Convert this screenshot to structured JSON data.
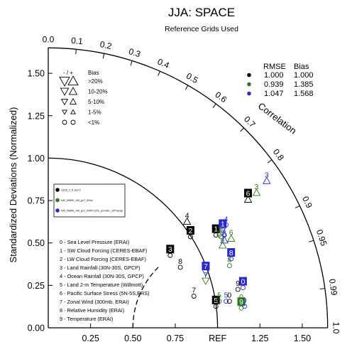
{
  "title": "JJA: SPACE",
  "subtitle": "Reference Grids Used",
  "colors": {
    "black": "#000000",
    "green": "#2a7a1a",
    "blue": "#2a2acc"
  },
  "chart_data": {
    "type": "scatter",
    "ylabel": "Standardized Deviations (Normalized)",
    "arc_label": "Correlation",
    "ref_label": "REF",
    "max_sd": 1.65,
    "x_ticks": [
      {
        "v": 0.25,
        "t": "0.25"
      },
      {
        "v": 0.5,
        "t": "0.50"
      },
      {
        "v": 0.75,
        "t": "0.75"
      },
      {
        "v": 1.25,
        "t": "1.25"
      },
      {
        "v": 1.5,
        "t": "1.50"
      }
    ],
    "y_ticks": [
      {
        "v": 0,
        "t": "0.00"
      },
      {
        "v": 0.25,
        "t": "0.25"
      },
      {
        "v": 0.5,
        "t": "0.50"
      },
      {
        "v": 0.75,
        "t": "0.75"
      },
      {
        "v": 1.0,
        "t": "1.00"
      },
      {
        "v": 1.25,
        "t": "1.25"
      },
      {
        "v": 1.5,
        "t": "1.50"
      }
    ],
    "corr_ticks": [
      {
        "v": 0,
        "t": "0.0"
      },
      {
        "v": 0.1,
        "t": "0.1"
      },
      {
        "v": 0.2,
        "t": "0.2"
      },
      {
        "v": 0.3,
        "t": "0.3"
      },
      {
        "v": 0.4,
        "t": "0.4"
      },
      {
        "v": 0.5,
        "t": "0.5"
      },
      {
        "v": 0.6,
        "t": "0.6"
      },
      {
        "v": 0.7,
        "t": "0.7"
      },
      {
        "v": 0.8,
        "t": "0.8"
      },
      {
        "v": 0.9,
        "t": "0.9"
      },
      {
        "v": 0.95,
        "t": "0.95"
      },
      {
        "v": 0.99,
        "t": "0.99"
      },
      {
        "v": 1.0,
        "t": "1.0"
      }
    ],
    "series": [
      {
        "color_key": "black",
        "rmse": "1.000",
        "bias": "1.000"
      },
      {
        "color_key": "green",
        "rmse": "0.939",
        "bias": "1.385"
      },
      {
        "color_key": "blue",
        "rmse": "1.047",
        "bias": "1.568"
      }
    ],
    "stats_header": {
      "rmse": "RMSE",
      "bias": "Bias"
    },
    "bias_legend": {
      "header": {
        "sign": "- / +",
        "bias": "Bias"
      },
      "rows": [
        {
          "label": ">20%",
          "size": 7
        },
        {
          "label": "10-20%",
          "size": 5.5
        },
        {
          "label": "5-10%",
          "size": 4.3
        },
        {
          "label": "1-5%",
          "size": 3.2
        },
        {
          "label": "<1%",
          "size": 3
        }
      ]
    },
    "case_legend": [
      {
        "label": "cam5_0_f1.9x2.5",
        "color_key": "black"
      },
      {
        "label": "b40_f09f09_140_g17_f2Hro",
        "color_key": "green"
      },
      {
        "label": "b40_f09f09_140_g17_f2hPf-1ZXo_prcx06-r_d2f*ckcap",
        "color_key": "blue"
      }
    ],
    "variables": [
      {
        "index": "0",
        "name": "Sea Level Pressure (ERAI)"
      },
      {
        "index": "1",
        "name": "SW Cloud Forcing (CERES-EBAF)"
      },
      {
        "index": "2",
        "name": "LW Cloud Forcing (CERES-EBAF)"
      },
      {
        "index": "3",
        "name": "Land Rainfall (30N-30S, GPCP)"
      },
      {
        "index": "4",
        "name": "Ocean Rainfall (30N-30S, GPCP)"
      },
      {
        "index": "5",
        "name": "Land 2-m Temperature (Willmott)"
      },
      {
        "index": "6",
        "name": "Pacific Surface Stress (5N-5S,ERS)"
      },
      {
        "index": "7",
        "name": "Zonal Wind (300mb, ERAI)"
      },
      {
        "index": "8",
        "name": "Relative Humidity (ERAI)"
      },
      {
        "index": "9",
        "name": "Temperature (ERAI)"
      }
    ],
    "points": [
      {
        "s": 0,
        "id": "0",
        "x": 1.07,
        "y": 0.19,
        "m": "circle",
        "boxed": false
      },
      {
        "s": 1,
        "id": "0",
        "x": 1.14,
        "y": 0.18,
        "m": "circle",
        "boxed": false
      },
      {
        "s": 2,
        "id": "0",
        "x": 1.15,
        "y": 0.27,
        "m": "circle",
        "boxed": true
      },
      {
        "s": 0,
        "id": "1",
        "x": 0.99,
        "y": 0.58,
        "m": "circle",
        "boxed": true
      },
      {
        "s": 1,
        "id": "1",
        "x": 1.01,
        "y": 0.58,
        "m": "circle",
        "boxed": false
      },
      {
        "s": 2,
        "id": "1",
        "x": 1.03,
        "y": 0.61,
        "m": "circle",
        "boxed": true
      },
      {
        "s": 0,
        "id": "2",
        "x": 0.84,
        "y": 0.57,
        "m": "circle",
        "boxed": true
      },
      {
        "s": 1,
        "id": "2",
        "x": 1.02,
        "y": 0.57,
        "m": "circle",
        "boxed": false
      },
      {
        "s": 2,
        "id": "2",
        "x": 1.04,
        "y": 0.58,
        "m": "circle",
        "boxed": false
      },
      {
        "s": 0,
        "id": "3",
        "x": 0.72,
        "y": 0.46,
        "m": "circle",
        "boxed": true
      },
      {
        "s": 1,
        "id": "3",
        "x": 1.23,
        "y": 0.83,
        "m": "triangle-up",
        "boxed": false
      },
      {
        "s": 2,
        "id": "3",
        "x": 1.29,
        "y": 0.9,
        "m": "triangle-up",
        "boxed": false
      },
      {
        "s": 0,
        "id": "4",
        "x": 0.82,
        "y": 0.66,
        "m": "triangle-up",
        "boxed": false
      },
      {
        "s": 1,
        "id": "4",
        "x": 1.03,
        "y": 0.52,
        "m": "triangle-up",
        "boxed": false
      },
      {
        "s": 2,
        "id": "4",
        "x": 1.05,
        "y": 0.64,
        "m": "circle",
        "boxed": false
      },
      {
        "s": 0,
        "id": "5",
        "x": 0.99,
        "y": 0.16,
        "m": "circle",
        "boxed": true
      },
      {
        "s": 1,
        "id": "5",
        "x": 1.01,
        "y": 0.19,
        "m": "circle",
        "boxed": false
      },
      {
        "s": 2,
        "id": "5",
        "x": 1.05,
        "y": 0.19,
        "m": "circle",
        "boxed": false
      },
      {
        "s": 0,
        "id": "6",
        "x": 1.18,
        "y": 0.79,
        "m": "triangle-up",
        "boxed": true
      },
      {
        "s": 1,
        "id": "6",
        "x": 1.08,
        "y": 0.56,
        "m": "triangle-up",
        "boxed": false
      },
      {
        "s": 2,
        "id": "6",
        "x": 1.04,
        "y": 0.55,
        "m": "triangle-up",
        "boxed": false
      },
      {
        "s": 0,
        "id": "7",
        "x": 0.86,
        "y": 0.22,
        "m": "circle",
        "boxed": false
      },
      {
        "s": 1,
        "id": "7",
        "x": 0.93,
        "y": 0.31,
        "m": "triangle-down",
        "boxed": false
      },
      {
        "s": 2,
        "id": "7",
        "x": 0.93,
        "y": 0.36,
        "m": "triangle-down",
        "boxed": true
      },
      {
        "s": 0,
        "id": "8",
        "x": 0.78,
        "y": 0.39,
        "m": "circle",
        "boxed": false
      },
      {
        "s": 1,
        "id": "8",
        "x": 1.07,
        "y": 0.4,
        "m": "circle",
        "boxed": false
      },
      {
        "s": 2,
        "id": "8",
        "x": 1.08,
        "y": 0.44,
        "m": "circle",
        "boxed": true
      },
      {
        "s": 0,
        "id": "9",
        "x": 1.12,
        "y": 0.26,
        "m": "circle",
        "boxed": false
      },
      {
        "s": 1,
        "id": "9",
        "x": 1.14,
        "y": 0.15,
        "m": "circle",
        "boxed": true
      },
      {
        "s": 2,
        "id": "9",
        "x": 1.16,
        "y": 0.16,
        "m": "circle",
        "boxed": false
      }
    ]
  }
}
